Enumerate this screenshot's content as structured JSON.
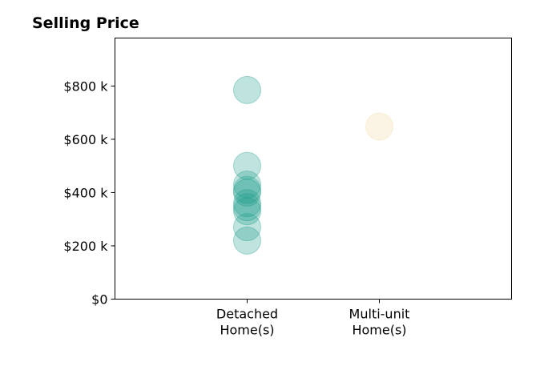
{
  "chart_data": {
    "type": "scatter",
    "title": "Selling Price",
    "xlabel": "",
    "ylabel": "",
    "categories": [
      [
        "Detached",
        "Home(s)"
      ],
      [
        "Multi-unit",
        "Home(s)"
      ]
    ],
    "x_range": [
      -1,
      2
    ],
    "ylim": [
      0,
      980
    ],
    "y_ticks": [
      {
        "value": 0,
        "label": "$0"
      },
      {
        "value": 200,
        "label": "$200 k"
      },
      {
        "value": 400,
        "label": "$400 k"
      },
      {
        "value": 600,
        "label": "$600 k"
      },
      {
        "value": 800,
        "label": "$800 k"
      }
    ],
    "grid": false,
    "legend": "none",
    "series": [
      {
        "category_index": 0,
        "color": "#1a9a8a",
        "values": [
          785,
          500,
          430,
          410,
          400,
          360,
          345,
          330,
          270,
          220
        ]
      },
      {
        "category_index": 1,
        "color": "#f0d9a0",
        "values": [
          648
        ]
      }
    ]
  }
}
